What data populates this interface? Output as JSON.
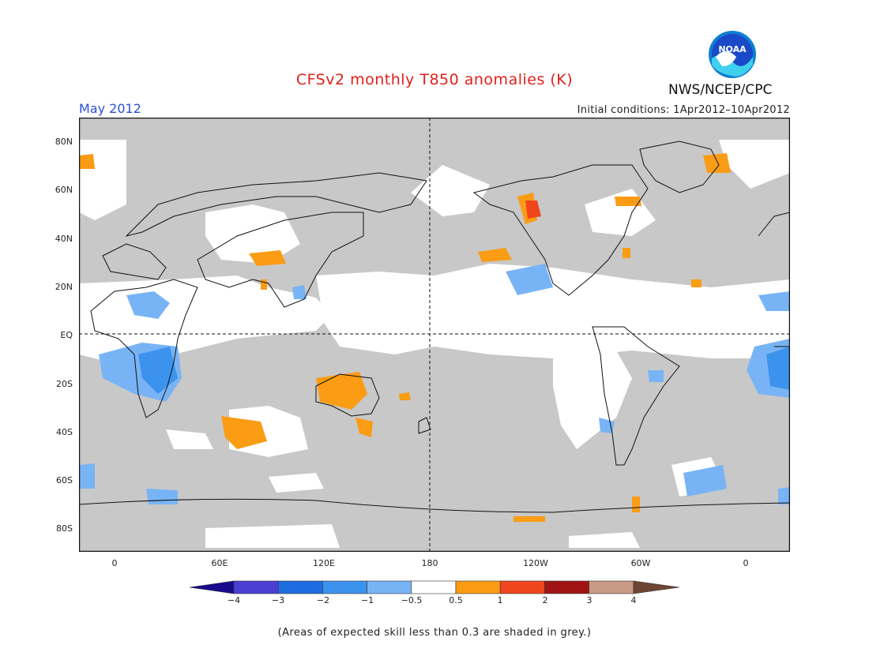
{
  "header": {
    "title": "CFSv2 monthly T850 anomalies (K)",
    "month": "May 2012",
    "initial_conditions": "Initial conditions: 1Apr2012–10Apr2012",
    "agency": "NWS/NCEP/CPC",
    "logo_text": "NOAA"
  },
  "map": {
    "lat_labels": [
      "80N",
      "60N",
      "40N",
      "20N",
      "EQ",
      "20S",
      "40S",
      "60S",
      "80S"
    ],
    "lon_labels": [
      "0",
      "60E",
      "120E",
      "180",
      "120W",
      "60W",
      "0"
    ],
    "background": "#c8c8c8",
    "skill_mask_color": "#c8c8c8"
  },
  "legend": {
    "labels": [
      "−4",
      "−3",
      "−2",
      "−1",
      "−0.5",
      "0.5",
      "1",
      "2",
      "3",
      "4"
    ],
    "colors": [
      "#1a0a8c",
      "#4a3fd1",
      "#1e6de0",
      "#3c93ee",
      "#78b4f5",
      "#ffffff",
      "#fa9c14",
      "#f0461e",
      "#a01414",
      "#c99a86",
      "#6e4532"
    ]
  },
  "footnote": "(Areas of expected skill less than 0.3 are shaded in grey.)"
}
